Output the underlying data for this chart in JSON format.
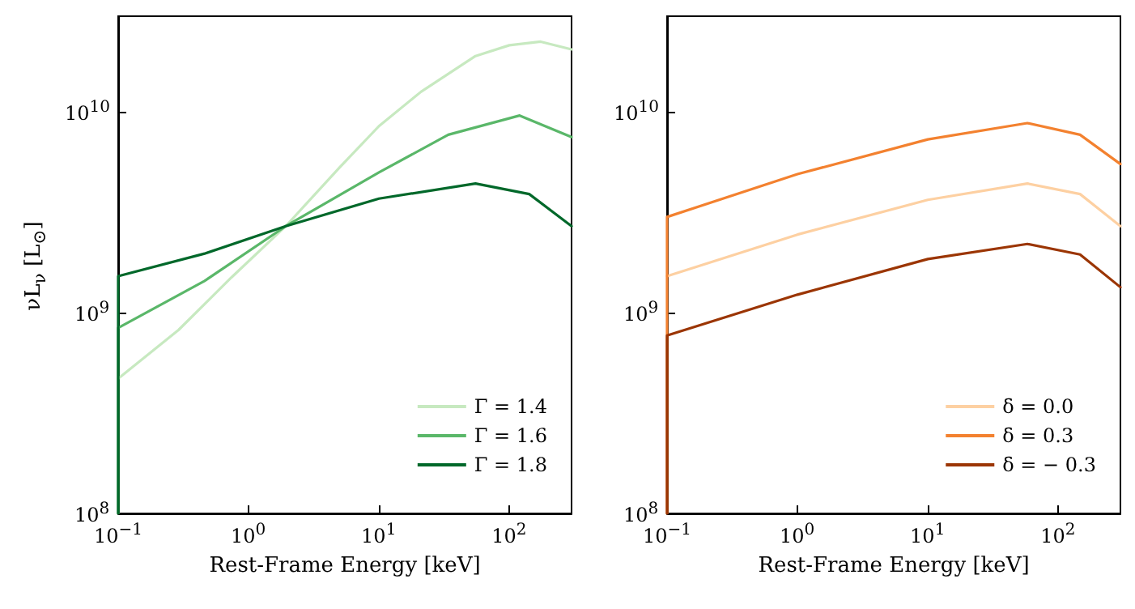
{
  "chart_data": [
    {
      "type": "line",
      "xlabel": "Rest-Frame Energy [keV]",
      "ylabel": "νL$_{ν}$ [L$_{⊙}$]",
      "log": "xy",
      "legend": "bottom right",
      "xlim": [
        0.1,
        300
      ],
      "ylim": [
        100000000,
        30000000000
      ],
      "xticks": [
        {
          "value": 0.1,
          "label": "10$^{−1}$"
        },
        {
          "value": 1,
          "label": "10$^{0}$"
        },
        {
          "value": 10,
          "label": "10$^{1}$"
        },
        {
          "value": 100,
          "label": "10$^{2}$"
        }
      ],
      "yticks": [
        {
          "value": 100000000,
          "label": "10$^{8}$"
        },
        {
          "value": 1000000000,
          "label": "10$^{9}$"
        },
        {
          "value": 10000000000,
          "label": "10$^{10}$"
        }
      ],
      "series": [
        {
          "name": "Γ = 1.4",
          "color": "#c7e9c0",
          "x": [
            0.1,
            0.29,
            0.74,
            1.93,
            5,
            10,
            21,
            55,
            100,
            174,
            300
          ],
          "values": [
            470000000,
            820000000,
            1500000000,
            2700000000,
            5300000000,
            8500000000,
            12600000000,
            19000000000,
            21500000000,
            22400000000,
            20500000000
          ]
        },
        {
          "name": "Γ = 1.6",
          "color": "#5ab769",
          "x": [
            0.1,
            0.1,
            0.46,
            1.93,
            10,
            34,
            120,
            300
          ],
          "values": [
            100000000,
            840000000,
            1440000000,
            2700000000,
            5000000000,
            7700000000,
            9600000000,
            7500000000
          ]
        },
        {
          "name": "Γ = 1.8",
          "color": "#00682a",
          "x": [
            0.1,
            0.1,
            0.46,
            1.93,
            10,
            55,
            142,
            300
          ],
          "values": [
            100000000,
            1520000000,
            1970000000,
            2700000000,
            3700000000,
            4400000000,
            3900000000,
            2700000000
          ]
        }
      ]
    },
    {
      "type": "line",
      "xlabel": "Rest-Frame Energy [keV]",
      "log": "xy",
      "legend": "bottom right",
      "xlim": [
        0.1,
        300
      ],
      "ylim": [
        100000000,
        30000000000
      ],
      "xticks": [
        {
          "value": 0.1,
          "label": "10$^{−1}$"
        },
        {
          "value": 1,
          "label": "10$^{0}$"
        },
        {
          "value": 10,
          "label": "10$^{1}$"
        },
        {
          "value": 100,
          "label": "10$^{2}$"
        }
      ],
      "yticks": [
        {
          "value": 100000000,
          "label": "10$^{8}$"
        },
        {
          "value": 1000000000,
          "label": "10$^{9}$"
        },
        {
          "value": 10000000000,
          "label": "10$^{10}$"
        }
      ],
      "series": [
        {
          "name": "δ = 0.0",
          "color": "#fdd0a2",
          "x": [
            0.1,
            1,
            10,
            58,
            147,
            300
          ],
          "values": [
            1520000000,
            2450000000,
            3650000000,
            4400000000,
            3900000000,
            2700000000
          ]
        },
        {
          "name": "δ = 0.3",
          "color": "#f3812f",
          "x": [
            0.1,
            0.1,
            1,
            10,
            58,
            147,
            300
          ],
          "values": [
            100000000,
            3000000000,
            4900000000,
            7300000000,
            8800000000,
            7700000000,
            5500000000
          ]
        },
        {
          "name": "δ = − 0.3",
          "color": "#9b3503",
          "x": [
            0.1,
            0.1,
            1,
            10,
            58,
            147,
            300
          ],
          "values": [
            100000000,
            770000000,
            1230000000,
            1850000000,
            2200000000,
            1950000000,
            1340000000
          ]
        }
      ]
    }
  ]
}
